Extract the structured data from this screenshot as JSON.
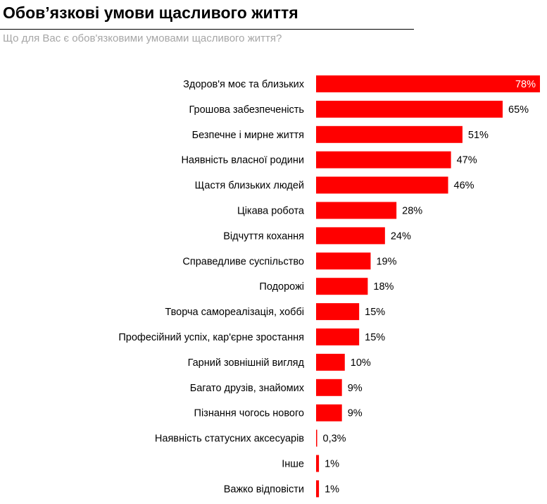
{
  "title": "Обов’язкові умови щасливого життя",
  "subtitle": "Що для Вас є обов'язковими умовами щасливого життя?",
  "chart_data": {
    "type": "bar",
    "orientation": "horizontal",
    "categories": [
      "Здоров'я моє та близьких",
      "Грошова забезпеченість",
      "Безпечне і мирне життя",
      "Наявність власної родини",
      "Щастя близьких людей",
      "Цікава робота",
      "Відчуття кохання",
      "Справедливе суспільство",
      "Подорожі",
      "Творча самореалізація, хоббі",
      "Професійний успіх, кар'єрне зростання",
      "Гарний зовнішній вигляд",
      "Багато друзів, знайомих",
      "Пізнання чогось нового",
      "Наявність статусних аксесуарів",
      "Інше",
      "Важко відповісти"
    ],
    "values": [
      78,
      65,
      51,
      47,
      46,
      28,
      24,
      19,
      18,
      15,
      15,
      10,
      9,
      9,
      0.3,
      1,
      1
    ],
    "labels": [
      "78%",
      "65%",
      "51%",
      "47%",
      "46%",
      "28%",
      "24%",
      "19%",
      "18%",
      "15%",
      "15%",
      "10%",
      "9%",
      "9%",
      "0,3%",
      "1%",
      "1%"
    ],
    "color": "#ff0000",
    "xlim": [
      0,
      78
    ],
    "grid": false
  }
}
